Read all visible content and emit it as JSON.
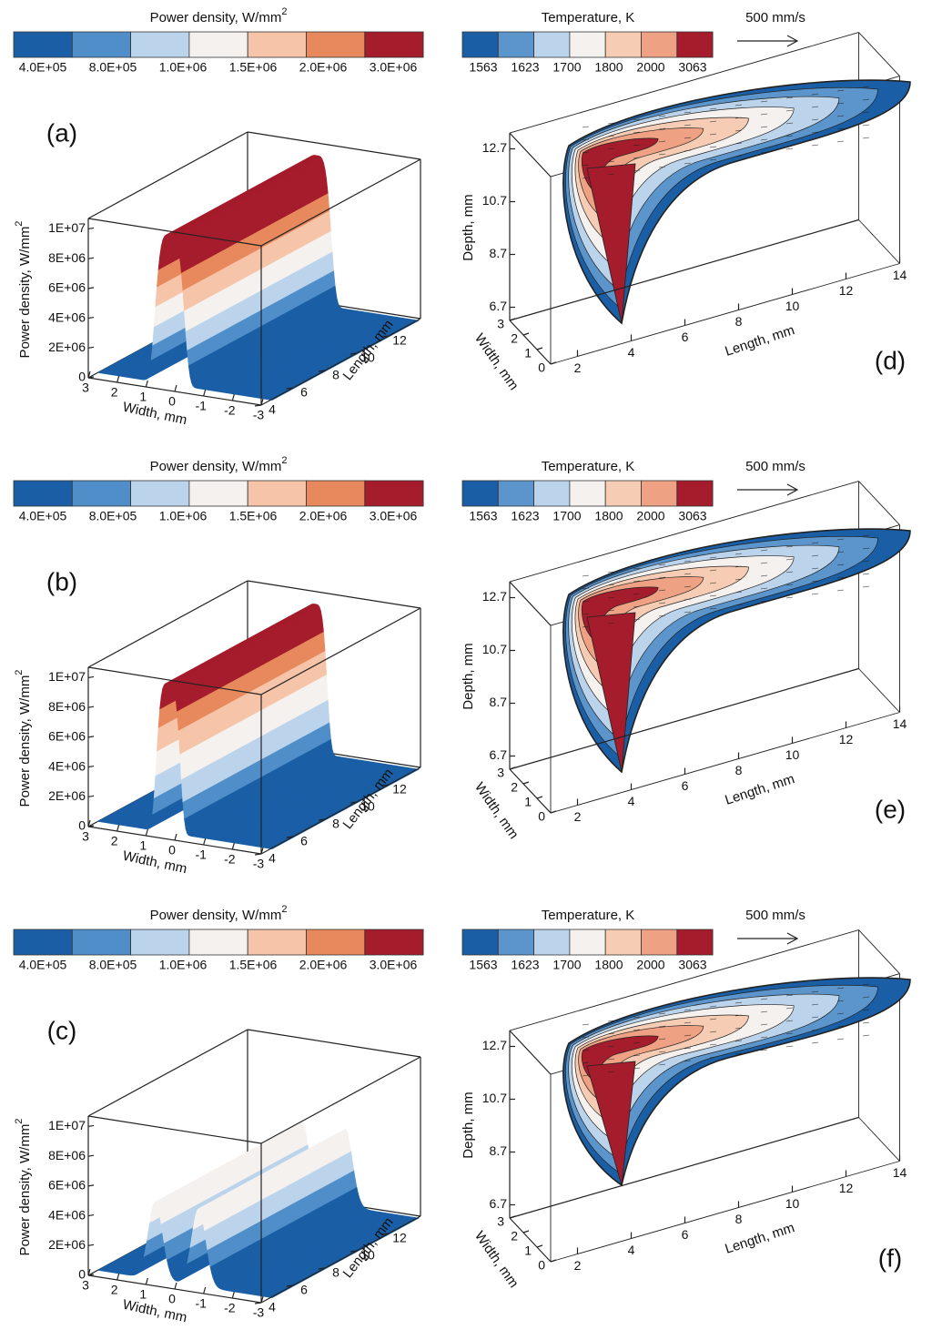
{
  "left_panels": [
    {
      "label": "(a)",
      "colorbar": {
        "title": "Power density, W/mm",
        "title_sup": "2",
        "colors": [
          "#1a5fa6",
          "#4f8ec8",
          "#bcd4eb",
          "#f4f1ef",
          "#f6c4a8",
          "#e8895d",
          "#a51c2c"
        ],
        "labels": [
          "4.0E+05",
          "8.0E+05",
          "1.0E+06",
          "1.5E+06",
          "2.0E+06",
          "3.0E+06"
        ]
      },
      "z_title": "Power density, W/mm",
      "z_title_sup": "2",
      "z_ticks": [
        "0",
        "2E+06",
        "4E+06",
        "6E+06",
        "8E+06",
        "1E+07"
      ],
      "width_title": "Width, mm",
      "width_ticks": [
        "3",
        "2",
        "1",
        "0",
        "-1",
        "-2",
        "-3"
      ],
      "length_title": "Length, mm",
      "length_ticks": [
        "4",
        "6",
        "8",
        "10",
        "12"
      ]
    },
    {
      "label": "(b)",
      "colorbar": {
        "title": "Power density, W/mm",
        "title_sup": "2",
        "colors": [
          "#1a5fa6",
          "#4f8ec8",
          "#bcd4eb",
          "#f4f1ef",
          "#f6c4a8",
          "#e8895d",
          "#a51c2c"
        ],
        "labels": [
          "4.0E+05",
          "8.0E+05",
          "1.0E+06",
          "1.5E+06",
          "2.0E+06",
          "3.0E+06"
        ]
      },
      "z_title": "Power density, W/mm",
      "z_title_sup": "2",
      "z_ticks": [
        "0",
        "2E+06",
        "4E+06",
        "6E+06",
        "8E+06",
        "1E+07"
      ],
      "width_title": "Width, mm",
      "width_ticks": [
        "3",
        "2",
        "1",
        "0",
        "-1",
        "-2",
        "-3"
      ],
      "length_title": "Length, mm",
      "length_ticks": [
        "4",
        "6",
        "8",
        "10",
        "12"
      ]
    },
    {
      "label": "(c)",
      "colorbar": {
        "title": "Power density, W/mm",
        "title_sup": "2",
        "colors": [
          "#1a5fa6",
          "#4f8ec8",
          "#bcd4eb",
          "#f4f1ef",
          "#f6c4a8",
          "#e8895d",
          "#a51c2c"
        ],
        "labels": [
          "4.0E+05",
          "8.0E+05",
          "1.0E+06",
          "1.5E+06",
          "2.0E+06",
          "3.0E+06"
        ]
      },
      "z_title": "Power density, W/mm",
      "z_title_sup": "2",
      "z_ticks": [
        "0",
        "2E+06",
        "4E+06",
        "6E+06",
        "8E+06",
        "1E+07"
      ],
      "width_title": "Width, mm",
      "width_ticks": [
        "3",
        "2",
        "1",
        "0",
        "-1",
        "-2",
        "-3"
      ],
      "length_title": "Length, mm",
      "length_ticks": [
        "4",
        "6",
        "8",
        "10",
        "12"
      ]
    }
  ],
  "right_panels": [
    {
      "label": "(d)",
      "colorbar": {
        "title": "Temperature, K",
        "colors": [
          "#1a5fa6",
          "#5b95cb",
          "#bcd4eb",
          "#f4f1ef",
          "#f6cdb4",
          "#eea183",
          "#a51c2c"
        ],
        "labels": [
          "1563",
          "1623",
          "1700",
          "1800",
          "2000",
          "3063"
        ]
      },
      "velocity": "500 mm/s",
      "depth_title": "Depth, mm",
      "depth_ticks": [
        "6.7",
        "8.7",
        "10.7",
        "12.7"
      ],
      "width_title": "Width, mm",
      "width_ticks": [
        "0",
        "1",
        "2",
        "3"
      ],
      "length_title": "Length, mm",
      "length_ticks": [
        "2",
        "4",
        "6",
        "8",
        "10",
        "12",
        "14"
      ]
    },
    {
      "label": "(e)",
      "colorbar": {
        "title": "Temperature, K",
        "colors": [
          "#1a5fa6",
          "#5b95cb",
          "#bcd4eb",
          "#f4f1ef",
          "#f6cdb4",
          "#eea183",
          "#a51c2c"
        ],
        "labels": [
          "1563",
          "1623",
          "1700",
          "1800",
          "2000",
          "3063"
        ]
      },
      "velocity": "500 mm/s",
      "depth_title": "Depth, mm",
      "depth_ticks": [
        "6.7",
        "8.7",
        "10.7",
        "12.7"
      ],
      "width_title": "Width, mm",
      "width_ticks": [
        "0",
        "1",
        "2",
        "3"
      ],
      "length_title": "Length, mm",
      "length_ticks": [
        "2",
        "4",
        "6",
        "8",
        "10",
        "12",
        "14"
      ]
    },
    {
      "label": "(f)",
      "colorbar": {
        "title": "Temperature, K",
        "colors": [
          "#1a5fa6",
          "#5b95cb",
          "#bcd4eb",
          "#f4f1ef",
          "#f6cdb4",
          "#eea183",
          "#a51c2c"
        ],
        "labels": [
          "1563",
          "1623",
          "1700",
          "1800",
          "2000",
          "3063"
        ]
      },
      "velocity": "500 mm/s",
      "depth_title": "Depth, mm",
      "depth_ticks": [
        "6.7",
        "8.7",
        "10.7",
        "12.7"
      ],
      "width_title": "Width, mm",
      "width_ticks": [
        "0",
        "1",
        "2",
        "3"
      ],
      "length_title": "Length, mm",
      "length_ticks": [
        "2",
        "4",
        "6",
        "8",
        "10",
        "12",
        "14"
      ]
    }
  ]
}
